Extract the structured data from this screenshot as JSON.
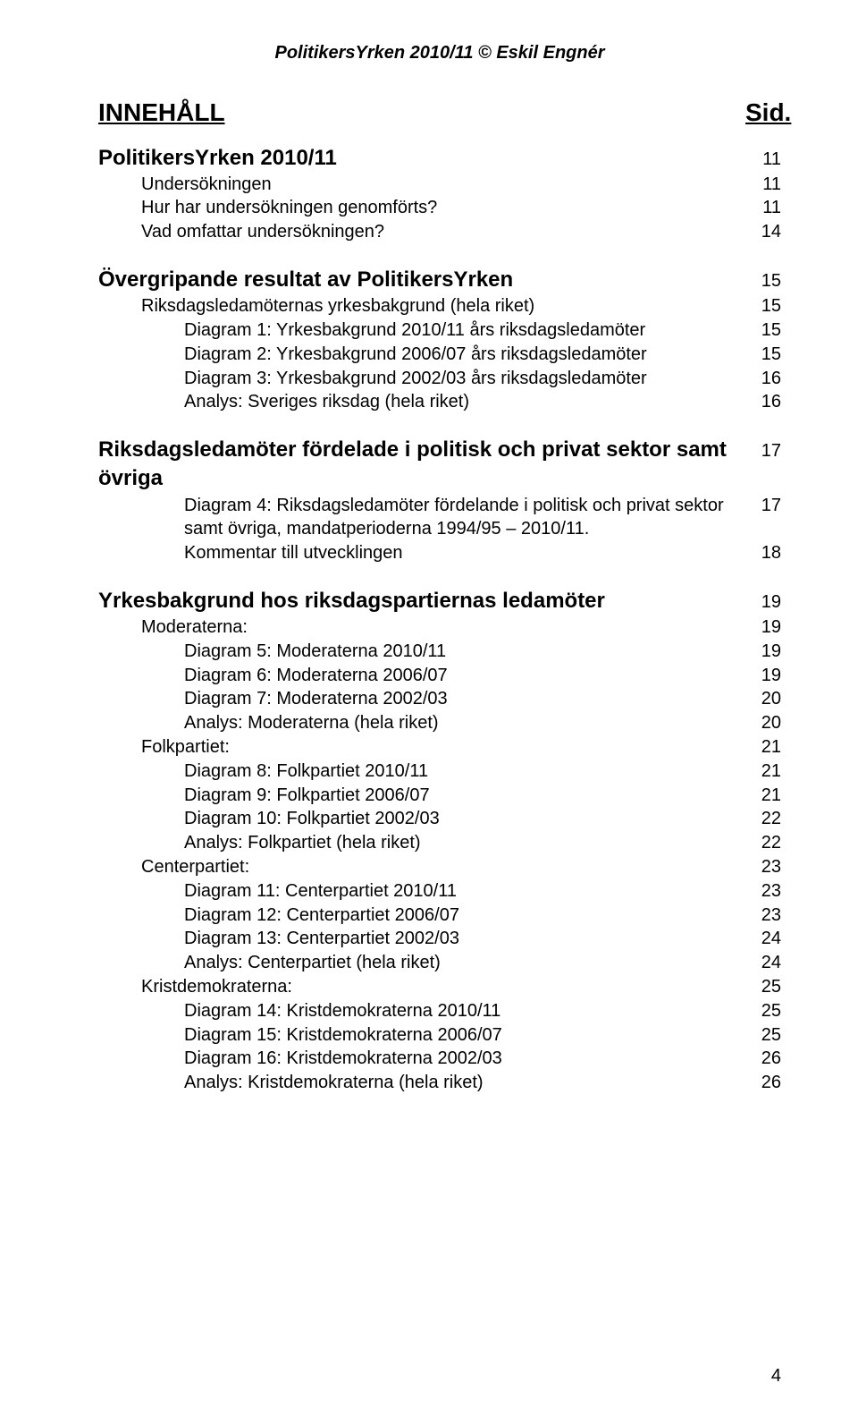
{
  "header": "PolitikersYrken 2010/11 © Eskil Engnér",
  "title": {
    "label": "INNEHÅLL",
    "page": "Sid."
  },
  "sections": [
    {
      "heading": {
        "label": "PolitikersYrken 2010/11",
        "page": "11"
      },
      "items": [
        {
          "level": 3,
          "label": "Undersökningen",
          "page": "11"
        },
        {
          "level": 3,
          "label": "Hur har undersökningen genomförts?",
          "page": "11"
        },
        {
          "level": 3,
          "label": "Vad omfattar undersökningen?",
          "page": "14"
        }
      ]
    },
    {
      "heading": {
        "label": "Övergripande resultat av PolitikersYrken",
        "page": "15"
      },
      "items": [
        {
          "level": 3,
          "label": "Riksdagsledamöternas yrkesbakgrund (hela riket)",
          "page": "15"
        },
        {
          "level": 4,
          "label": "Diagram 1: Yrkesbakgrund 2010/11 års riksdagsledamöter",
          "page": "15"
        },
        {
          "level": 4,
          "label": "Diagram 2: Yrkesbakgrund 2006/07 års riksdagsledamöter",
          "page": "15"
        },
        {
          "level": 4,
          "label": "Diagram 3: Yrkesbakgrund 2002/03 års riksdagsledamöter",
          "page": "16"
        },
        {
          "level": 4,
          "label": "Analys: Sveriges riksdag (hela riket)",
          "page": "16"
        }
      ]
    },
    {
      "heading": {
        "label": "Riksdagsledamöter fördelade i politisk och privat sektor samt övriga",
        "page": "17"
      },
      "items": [
        {
          "level": 4,
          "label": "Diagram 4: Riksdagsledamöter fördelande i politisk och privat sektor samt övriga, mandatperioderna 1994/95 – 2010/11.",
          "page": "17"
        },
        {
          "level": 4,
          "label": "Kommentar till utvecklingen",
          "page": "18"
        }
      ]
    },
    {
      "heading": {
        "label": "Yrkesbakgrund hos riksdagspartiernas ledamöter",
        "page": "19"
      },
      "items": [
        {
          "level": 3,
          "label": "Moderaterna:",
          "page": "19"
        },
        {
          "level": 4,
          "label": "Diagram 5: Moderaterna 2010/11",
          "page": "19"
        },
        {
          "level": 4,
          "label": "Diagram 6: Moderaterna 2006/07",
          "page": "19"
        },
        {
          "level": 4,
          "label": "Diagram 7: Moderaterna 2002/03",
          "page": "20"
        },
        {
          "level": 4,
          "label": "Analys: Moderaterna (hela riket)",
          "page": "20"
        },
        {
          "level": 3,
          "label": "Folkpartiet:",
          "page": "21"
        },
        {
          "level": 4,
          "label": "Diagram 8: Folkpartiet 2010/11",
          "page": "21"
        },
        {
          "level": 4,
          "label": "Diagram 9: Folkpartiet 2006/07",
          "page": "21"
        },
        {
          "level": 4,
          "label": "Diagram 10: Folkpartiet 2002/03",
          "page": "22"
        },
        {
          "level": 4,
          "label": "Analys: Folkpartiet (hela riket)",
          "page": "22"
        },
        {
          "level": 3,
          "label": "Centerpartiet:",
          "page": "23"
        },
        {
          "level": 4,
          "label": "Diagram 11: Centerpartiet 2010/11",
          "page": "23"
        },
        {
          "level": 4,
          "label": "Diagram 12: Centerpartiet 2006/07",
          "page": "23"
        },
        {
          "level": 4,
          "label": "Diagram 13: Centerpartiet 2002/03",
          "page": "24"
        },
        {
          "level": 4,
          "label": "Analys: Centerpartiet (hela riket)",
          "page": "24"
        },
        {
          "level": 3,
          "label": "Kristdemokraterna:",
          "page": "25"
        },
        {
          "level": 4,
          "label": "Diagram 14: Kristdemokraterna 2010/11",
          "page": "25"
        },
        {
          "level": 4,
          "label": "Diagram 15: Kristdemokraterna 2006/07",
          "page": "25"
        },
        {
          "level": 4,
          "label": "Diagram 16: Kristdemokraterna 2002/03",
          "page": "26"
        },
        {
          "level": 4,
          "label": "Analys: Kristdemokraterna (hela riket)",
          "page": "26"
        }
      ]
    }
  ],
  "page_number": "4"
}
